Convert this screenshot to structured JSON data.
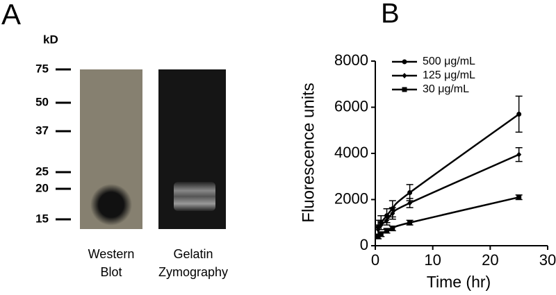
{
  "panel_a": {
    "label": "A",
    "unit": "kD",
    "markers": [
      "75",
      "50",
      "37",
      "25",
      "20",
      "15"
    ],
    "lanes": [
      [
        "Western",
        "Blot"
      ],
      [
        "Gelatin",
        "Zymography"
      ]
    ]
  },
  "chart_data": {
    "type": "line",
    "panel_label": "B",
    "x_label": "Time (hr)",
    "y_label": "Fluorescence units",
    "x": [
      0.5,
      1,
      2,
      3,
      6,
      25
    ],
    "series": [
      {
        "name": "500 μg/mL",
        "color": "#000000",
        "marker": "circle",
        "values": [
          800,
          1000,
          1300,
          1600,
          2300,
          5700
        ],
        "errors": [
          300,
          300,
          300,
          350,
          350,
          780
        ]
      },
      {
        "name": "125 μg/mL",
        "color": "#000000",
        "marker": "diamond",
        "values": [
          700,
          900,
          1100,
          1400,
          1850,
          3950
        ],
        "errors": [
          200,
          200,
          200,
          250,
          200,
          300
        ]
      },
      {
        "name": "30 μg/mL",
        "color": "#000000",
        "marker": "square",
        "values": [
          400,
          500,
          650,
          750,
          1000,
          2100
        ],
        "errors": [
          100,
          100,
          100,
          100,
          100,
          100
        ]
      }
    ],
    "xlim": [
      0,
      30
    ],
    "xticks": [
      0,
      10,
      20,
      30
    ],
    "ylim": [
      0,
      8000
    ],
    "yticks": [
      0,
      2000,
      4000,
      6000,
      8000
    ],
    "legend": "top-left"
  }
}
